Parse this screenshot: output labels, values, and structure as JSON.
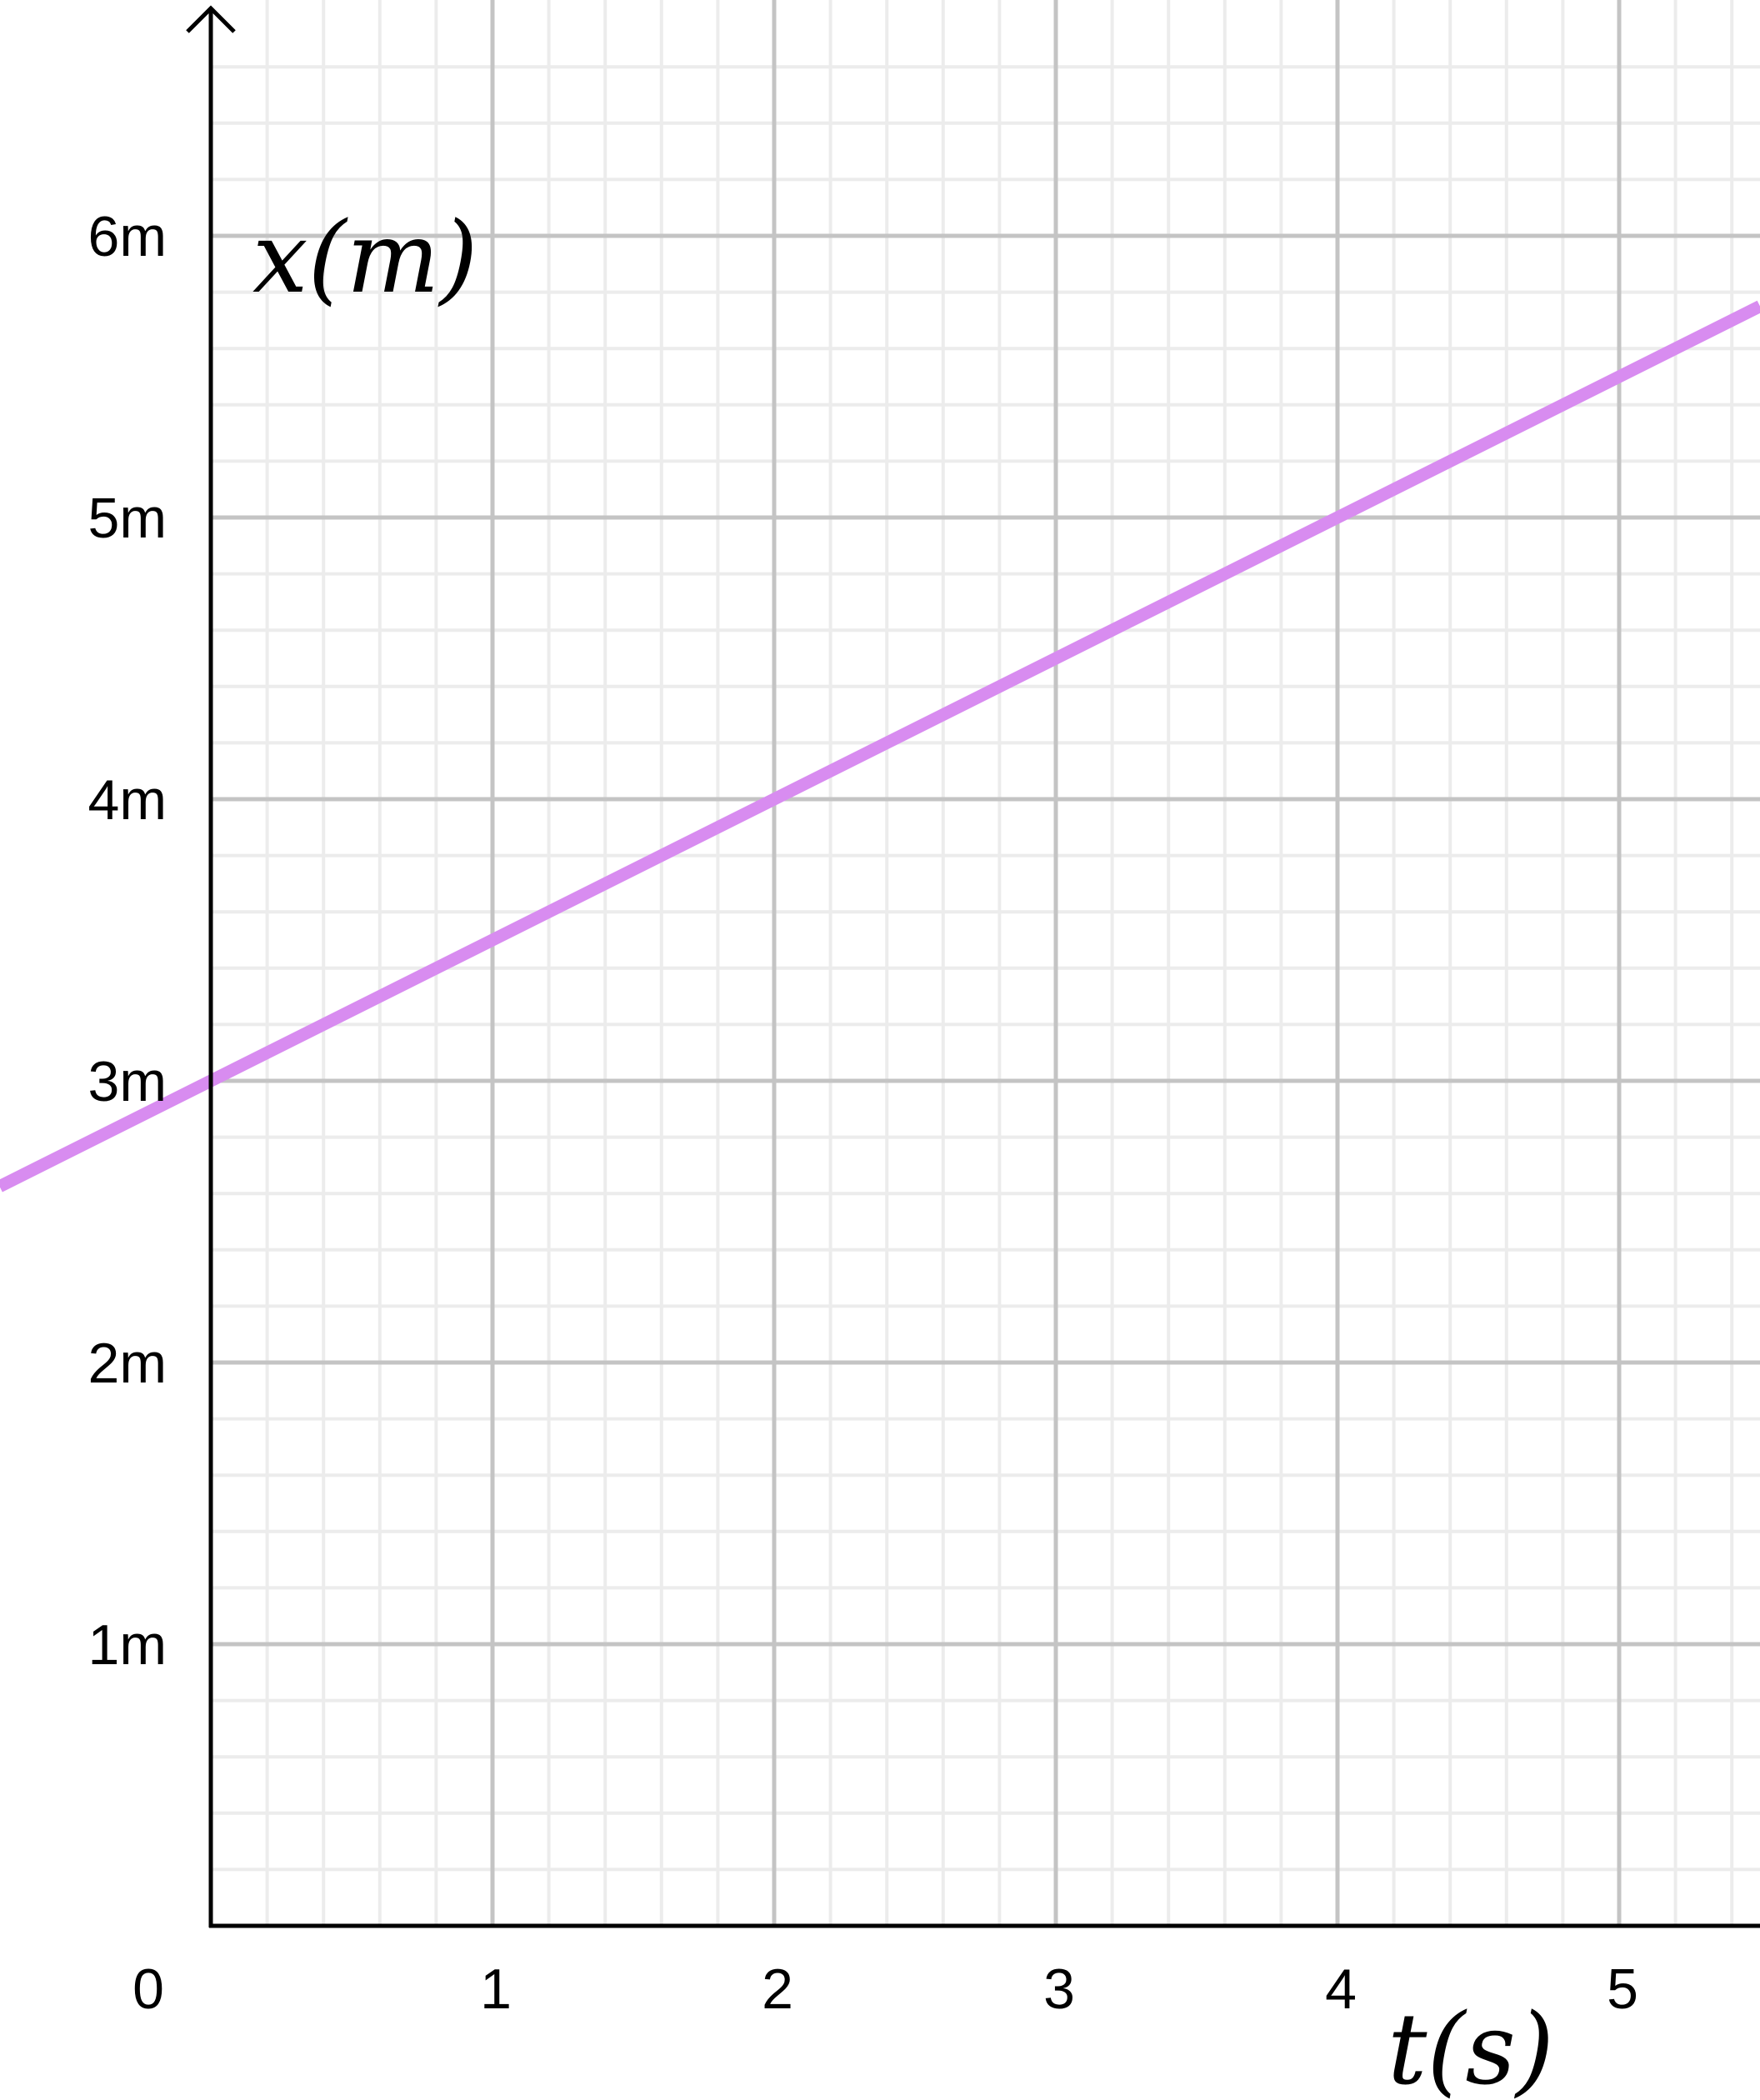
{
  "chart_data": {
    "type": "line",
    "title": "",
    "xlabel": "t(s)",
    "ylabel": "x(m)",
    "origin_label": "0",
    "x_ticks": [
      "1",
      "2",
      "3",
      "4",
      "5"
    ],
    "y_ticks": [
      "1m",
      "2m",
      "3m",
      "4m",
      "5m",
      "6m"
    ],
    "xlim": [
      0,
      5.5
    ],
    "ylim": [
      0,
      6.6
    ],
    "grid": true,
    "minor_grid_per_unit": 5,
    "series": [
      {
        "x": [
          -0.75,
          5.5
        ],
        "y": [
          2.625,
          5.75
        ],
        "color": "#d88cf0"
      }
    ]
  }
}
